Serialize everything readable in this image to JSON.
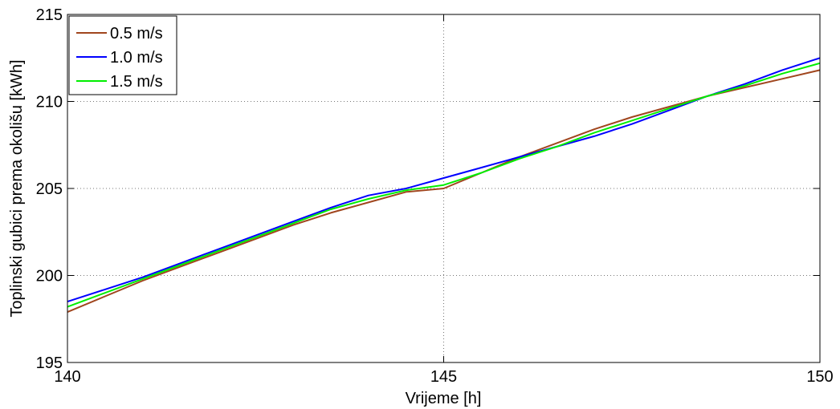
{
  "chart_data": {
    "type": "line",
    "title": "",
    "xlabel": "Vrijeme [h]",
    "ylabel": "Toplinski gubici prema okolišu [kWh]",
    "xlim": [
      140,
      150
    ],
    "ylim": [
      195,
      215
    ],
    "xticks": [
      140,
      145,
      150
    ],
    "yticks": [
      195,
      200,
      205,
      210,
      215
    ],
    "grid": "dotted, at ticks",
    "legend_position": "top-left",
    "series": [
      {
        "name": "0.5 m/s",
        "color": "#a0461e",
        "x": [
          140,
          140.5,
          141,
          141.5,
          142,
          142.5,
          143,
          143.5,
          144,
          144.5,
          145,
          145.5,
          146,
          146.5,
          147,
          147.5,
          148,
          148.5,
          149,
          149.5,
          150
        ],
        "y": [
          197.9,
          198.8,
          199.7,
          200.5,
          201.3,
          202.1,
          202.9,
          203.6,
          204.2,
          204.8,
          205.0,
          205.9,
          206.8,
          207.6,
          208.4,
          209.1,
          209.7,
          210.3,
          210.8,
          211.3,
          211.8
        ]
      },
      {
        "name": "1.0 m/s",
        "color": "#0000ff",
        "x": [
          140,
          140.5,
          141,
          141.5,
          142,
          142.5,
          143,
          143.5,
          144,
          144.5,
          145,
          145.5,
          146,
          146.5,
          147,
          147.5,
          148,
          148.5,
          149,
          149.5,
          150
        ],
        "y": [
          198.5,
          199.2,
          199.9,
          200.7,
          201.5,
          202.3,
          203.1,
          203.9,
          204.6,
          205.0,
          205.6,
          206.2,
          206.8,
          207.4,
          208.0,
          208.7,
          209.5,
          210.3,
          211.0,
          211.8,
          212.5
        ]
      },
      {
        "name": "1.5 m/s",
        "color": "#00ee00",
        "x": [
          140,
          140.5,
          141,
          141.5,
          142,
          142.5,
          143,
          143.5,
          144,
          144.5,
          145,
          145.5,
          146,
          146.5,
          147,
          147.5,
          148,
          148.5,
          149,
          149.5,
          150
        ],
        "y": [
          198.2,
          199.0,
          199.8,
          200.6,
          201.4,
          202.2,
          203.0,
          203.8,
          204.4,
          204.9,
          205.2,
          205.9,
          206.7,
          207.4,
          208.2,
          208.9,
          209.6,
          210.3,
          210.9,
          211.6,
          212.2
        ]
      }
    ]
  }
}
